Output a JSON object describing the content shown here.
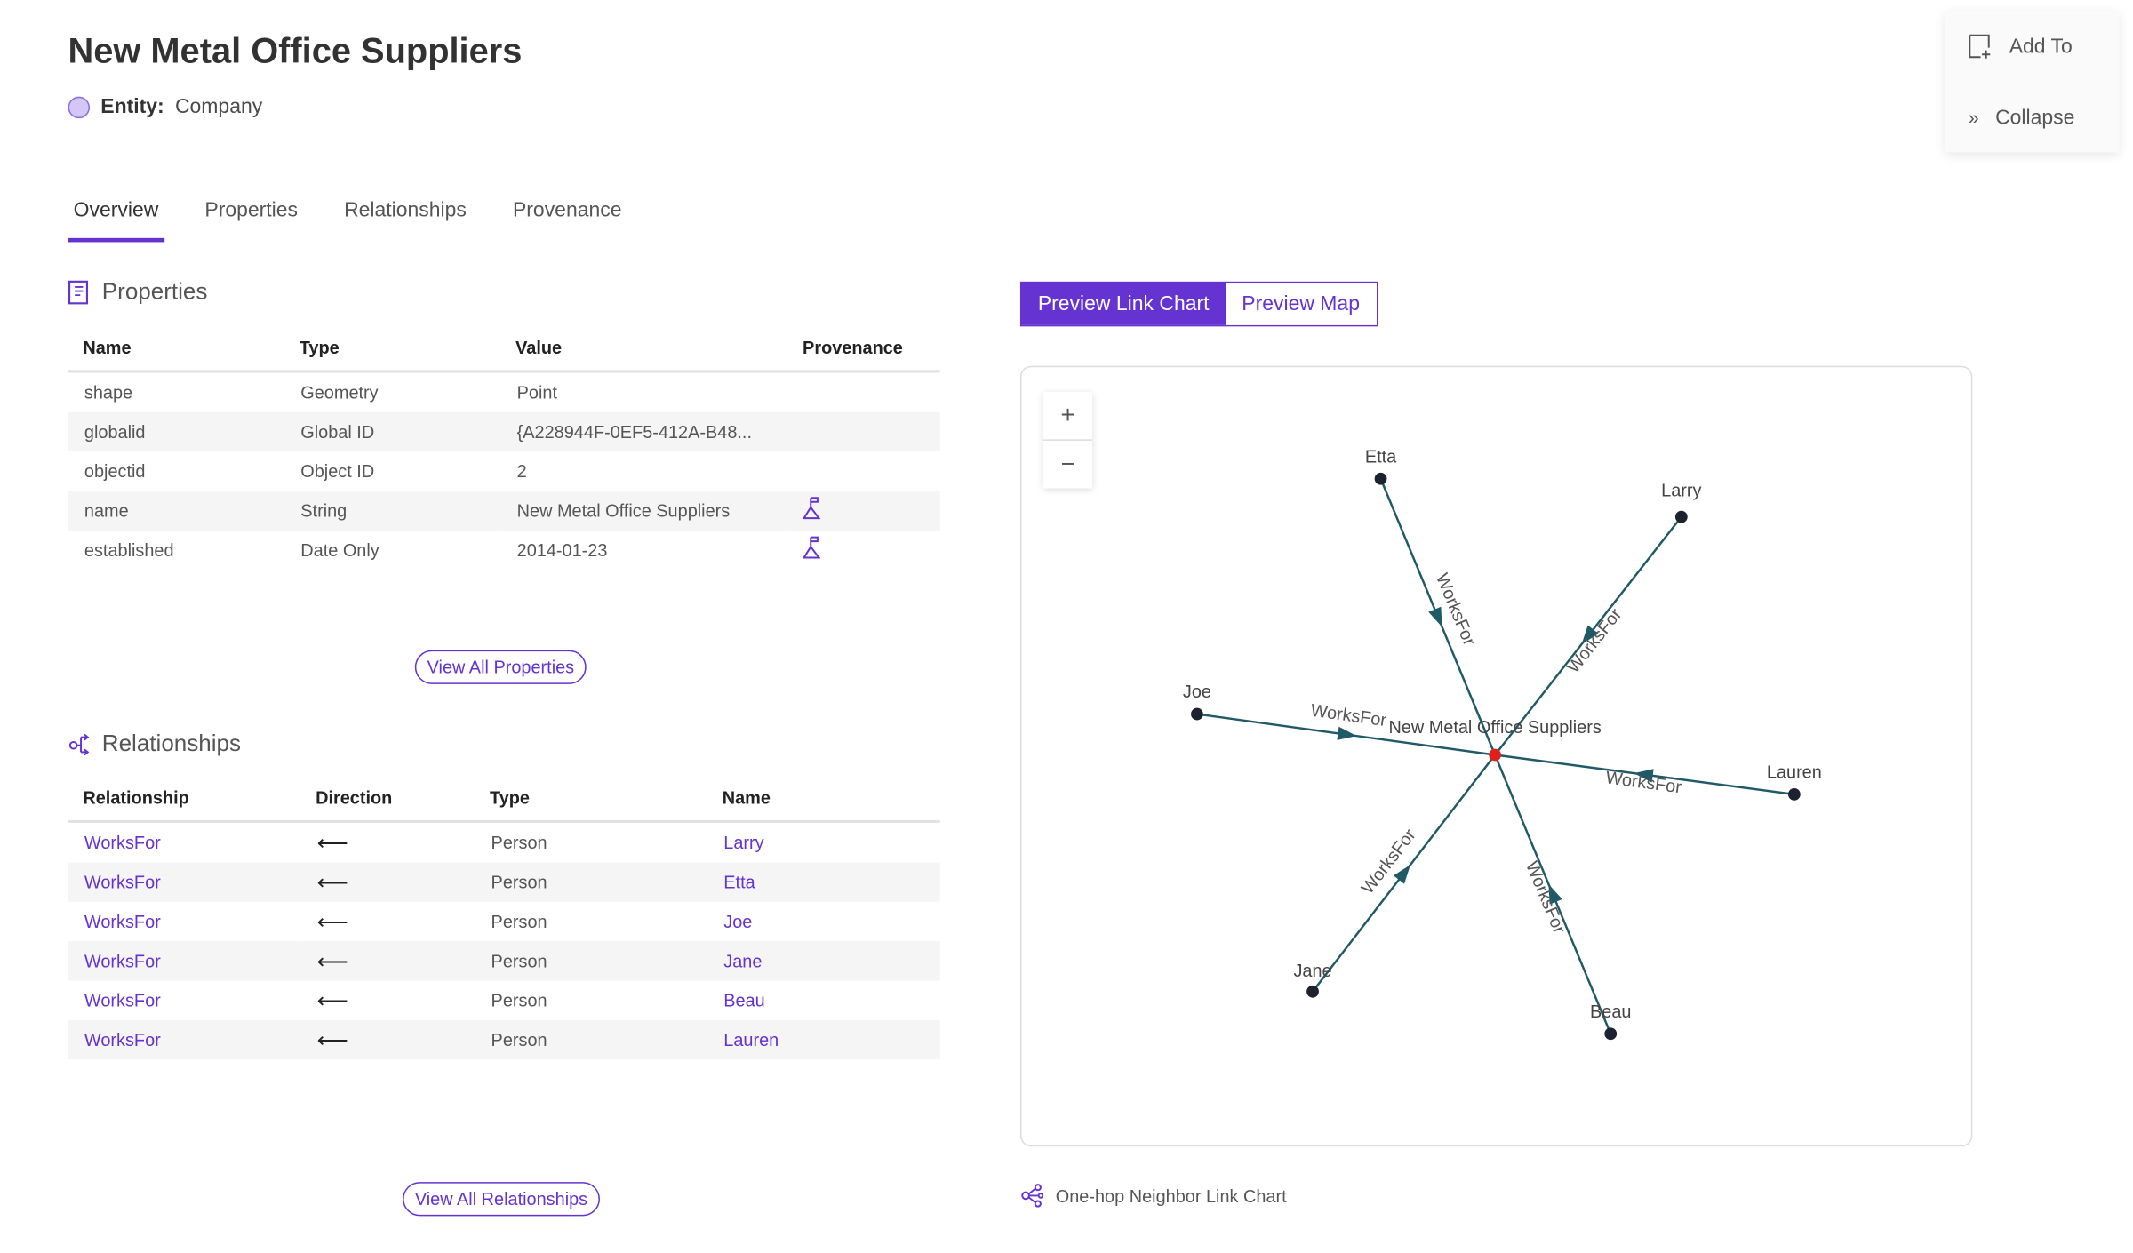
{
  "header": {
    "title": "New Metal Office Suppliers",
    "entity_label": "Entity:",
    "entity_value": "Company"
  },
  "tabs": [
    {
      "label": "Overview",
      "active": true
    },
    {
      "label": "Properties"
    },
    {
      "label": "Relationships"
    },
    {
      "label": "Provenance"
    }
  ],
  "side_actions": {
    "add_to": "Add To",
    "collapse": "Collapse"
  },
  "properties": {
    "title": "Properties",
    "columns": [
      "Name",
      "Type",
      "Value",
      "Provenance"
    ],
    "rows": [
      {
        "name": "shape",
        "type": "Geometry",
        "value": "Point",
        "provenance": false
      },
      {
        "name": "globalid",
        "type": "Global ID",
        "value": "{A228944F-0EF5-412A-B48...",
        "provenance": false
      },
      {
        "name": "objectid",
        "type": "Object ID",
        "value": "2",
        "provenance": false
      },
      {
        "name": "name",
        "type": "String",
        "value": "New Metal Office Suppliers",
        "provenance": true
      },
      {
        "name": "established",
        "type": "Date Only",
        "value": "2014-01-23",
        "provenance": true
      }
    ],
    "view_all": "View All Properties"
  },
  "relationships": {
    "title": "Relationships",
    "columns": [
      "Relationship",
      "Direction",
      "Type",
      "Name"
    ],
    "rows": [
      {
        "relationship": "WorksFor",
        "direction": "⟵",
        "type": "Person",
        "name": "Larry"
      },
      {
        "relationship": "WorksFor",
        "direction": "⟵",
        "type": "Person",
        "name": "Etta"
      },
      {
        "relationship": "WorksFor",
        "direction": "⟵",
        "type": "Person",
        "name": "Joe"
      },
      {
        "relationship": "WorksFor",
        "direction": "⟵",
        "type": "Person",
        "name": "Jane"
      },
      {
        "relationship": "WorksFor",
        "direction": "⟵",
        "type": "Person",
        "name": "Beau"
      },
      {
        "relationship": "WorksFor",
        "direction": "⟵",
        "type": "Person",
        "name": "Lauren"
      }
    ],
    "view_all": "View All Relationships"
  },
  "preview": {
    "link_chart": "Preview Link Chart",
    "map": "Preview Map",
    "active": "link_chart",
    "zoom_in": "+",
    "zoom_out": "−"
  },
  "link_chart": {
    "center": "New Metal Office Suppliers",
    "center_color": "#e0201b",
    "edge_color": "#1f5a66",
    "nodes": [
      "Etta",
      "Larry",
      "Joe",
      "Lauren",
      "Jane",
      "Beau"
    ],
    "edge_label": "WorksFor",
    "caption": "One-hop Neighbor Link Chart"
  },
  "colors": {
    "accent": "#6533d1"
  }
}
